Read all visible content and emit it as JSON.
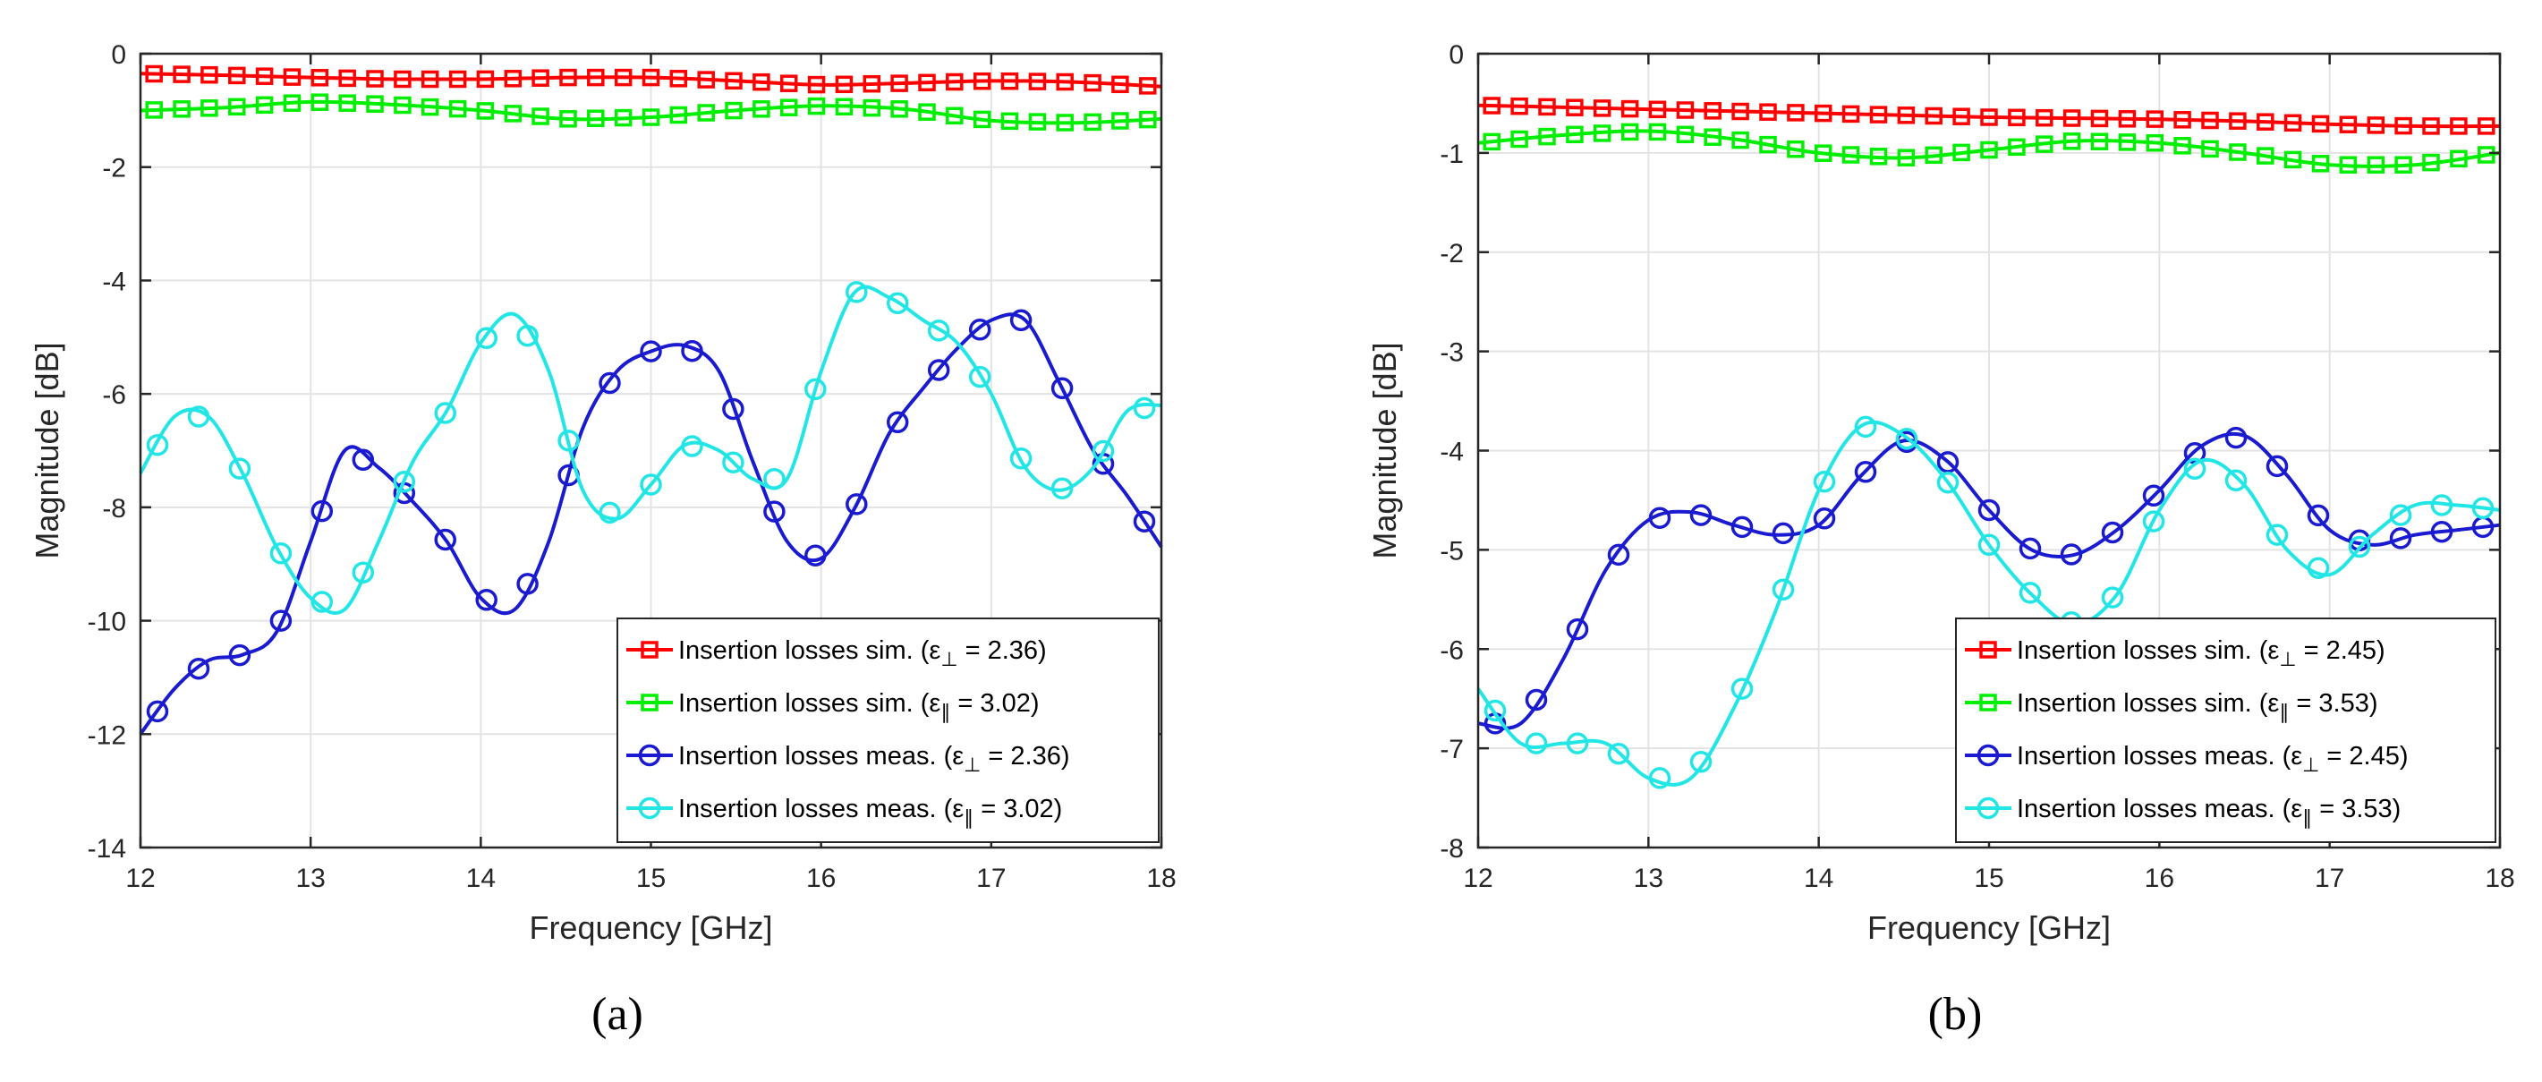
{
  "chart_data": [
    {
      "type": "line",
      "panel_label": "(a)",
      "xlabel": "Frequency [GHz]",
      "ylabel": "Magnitude [dB]",
      "xlim": [
        12,
        18
      ],
      "ylim": [
        -14,
        0
      ],
      "xticks": [
        "12",
        "13",
        "14",
        "15",
        "16",
        "17",
        "18"
      ],
      "yticks": [
        "0",
        "-2",
        "-4",
        "-6",
        "-8",
        "-10",
        "-12",
        "-14"
      ],
      "grid": true,
      "legend_position": "bottom-right",
      "series": [
        {
          "name": "Insertion losses sim.",
          "eps_symbol": "ε",
          "eps_sub": "⊥",
          "eps_value": "= 2.36",
          "color": "#ff0000",
          "marker": "square",
          "x": [
            12,
            12.5,
            13,
            13.5,
            14,
            14.5,
            15,
            15.5,
            16,
            16.5,
            17,
            17.5,
            18
          ],
          "y": [
            -0.35,
            -0.38,
            -0.42,
            -0.45,
            -0.45,
            -0.42,
            -0.42,
            -0.48,
            -0.55,
            -0.52,
            -0.48,
            -0.5,
            -0.58
          ]
        },
        {
          "name": "Insertion losses sim.",
          "eps_symbol": "ε",
          "eps_sub": "∥",
          "eps_value": "= 3.02",
          "color": "#00ee00",
          "marker": "square",
          "x": [
            12,
            12.5,
            13,
            13.5,
            14,
            14.5,
            15,
            15.5,
            16,
            16.5,
            17,
            17.5,
            18
          ],
          "y": [
            -1.0,
            -0.95,
            -0.85,
            -0.9,
            -1.0,
            -1.15,
            -1.12,
            -1.0,
            -0.92,
            -0.98,
            -1.18,
            -1.22,
            -1.15
          ]
        },
        {
          "name": "Insertion losses meas.",
          "eps_symbol": "ε",
          "eps_sub": "⊥",
          "eps_value": "= 2.36",
          "color": "#1a1ad0",
          "marker": "circle",
          "x": [
            12,
            12.2,
            12.4,
            12.6,
            12.8,
            13.0,
            13.2,
            13.4,
            13.6,
            13.8,
            14.0,
            14.2,
            14.4,
            14.6,
            14.8,
            15.0,
            15.2,
            15.4,
            15.6,
            15.8,
            16.0,
            16.2,
            16.4,
            16.6,
            16.8,
            17.0,
            17.2,
            17.4,
            17.6,
            17.8,
            18.0
          ],
          "y": [
            -12.0,
            -11.2,
            -10.7,
            -10.6,
            -10.2,
            -8.6,
            -7.0,
            -7.3,
            -7.9,
            -8.6,
            -9.6,
            -9.8,
            -8.6,
            -6.6,
            -5.6,
            -5.25,
            -5.15,
            -5.6,
            -7.2,
            -8.6,
            -8.9,
            -8.0,
            -6.7,
            -5.9,
            -5.2,
            -4.7,
            -4.7,
            -5.8,
            -7.0,
            -7.8,
            -8.7
          ]
        },
        {
          "name": "Insertion losses meas.",
          "eps_symbol": "ε",
          "eps_sub": "∥",
          "eps_value": "= 3.02",
          "color": "#22e6e6",
          "marker": "circle",
          "x": [
            12,
            12.2,
            12.4,
            12.6,
            12.8,
            13.0,
            13.2,
            13.4,
            13.6,
            13.8,
            14.0,
            14.2,
            14.4,
            14.6,
            14.8,
            15.0,
            15.2,
            15.4,
            15.6,
            15.8,
            16.0,
            16.2,
            16.4,
            16.6,
            16.8,
            17.0,
            17.2,
            17.4,
            17.6,
            17.8,
            18.0
          ],
          "y": [
            -7.4,
            -6.4,
            -6.4,
            -7.4,
            -8.7,
            -9.6,
            -9.8,
            -8.6,
            -7.2,
            -6.3,
            -5.1,
            -4.6,
            -5.6,
            -7.7,
            -8.2,
            -7.6,
            -6.9,
            -7.0,
            -7.5,
            -7.5,
            -5.6,
            -4.2,
            -4.3,
            -4.7,
            -5.1,
            -6.0,
            -7.3,
            -7.7,
            -7.3,
            -6.3,
            -6.2
          ]
        }
      ]
    },
    {
      "type": "line",
      "panel_label": "(b)",
      "xlabel": "Frequency [GHz]",
      "ylabel": "Magnitude [dB]",
      "xlim": [
        12,
        18
      ],
      "ylim": [
        -8,
        0
      ],
      "xticks": [
        "12",
        "13",
        "14",
        "15",
        "16",
        "17",
        "18"
      ],
      "yticks": [
        "0",
        "-1",
        "-2",
        "-3",
        "-4",
        "-5",
        "-6",
        "-7",
        "-8"
      ],
      "grid": true,
      "legend_position": "bottom-right",
      "series": [
        {
          "name": "Insertion losses sim.",
          "eps_symbol": "ε",
          "eps_sub": "⊥",
          "eps_value": "= 2.45",
          "color": "#ff0000",
          "marker": "square",
          "x": [
            12,
            12.5,
            13,
            13.5,
            14,
            14.5,
            15,
            15.5,
            16,
            16.5,
            17,
            17.5,
            18
          ],
          "y": [
            -0.52,
            -0.54,
            -0.56,
            -0.58,
            -0.6,
            -0.62,
            -0.64,
            -0.65,
            -0.66,
            -0.68,
            -0.71,
            -0.73,
            -0.73
          ]
        },
        {
          "name": "Insertion losses sim.",
          "eps_symbol": "ε",
          "eps_sub": "∥",
          "eps_value": "= 3.53",
          "color": "#00ee00",
          "marker": "square",
          "x": [
            12,
            12.5,
            13,
            13.5,
            14,
            14.5,
            15,
            15.5,
            16,
            16.5,
            17,
            17.5,
            18
          ],
          "y": [
            -0.9,
            -0.82,
            -0.78,
            -0.86,
            -1.0,
            -1.05,
            -0.97,
            -0.88,
            -0.9,
            -1.0,
            -1.12,
            -1.12,
            -1.0
          ]
        },
        {
          "name": "Insertion losses meas.",
          "eps_symbol": "ε",
          "eps_sub": "⊥",
          "eps_value": "= 2.45",
          "color": "#1a1ad0",
          "marker": "circle",
          "x": [
            12,
            12.25,
            12.5,
            12.75,
            13,
            13.25,
            13.5,
            13.75,
            14,
            14.25,
            14.5,
            14.75,
            15,
            15.25,
            15.5,
            15.75,
            16,
            16.25,
            16.5,
            16.75,
            17,
            17.25,
            17.5,
            17.75,
            18
          ],
          "y": [
            -6.75,
            -6.75,
            -6.1,
            -5.2,
            -4.7,
            -4.62,
            -4.75,
            -4.85,
            -4.75,
            -4.25,
            -3.9,
            -4.1,
            -4.6,
            -5.0,
            -5.05,
            -4.8,
            -4.4,
            -3.95,
            -3.85,
            -4.25,
            -4.8,
            -4.95,
            -4.85,
            -4.8,
            -4.75
          ]
        },
        {
          "name": "Insertion losses meas.",
          "eps_symbol": "ε",
          "eps_sub": "∥",
          "eps_value": "= 3.53",
          "color": "#22e6e6",
          "marker": "circle",
          "x": [
            12,
            12.25,
            12.5,
            12.75,
            13,
            13.25,
            13.5,
            13.75,
            14,
            14.25,
            14.5,
            14.75,
            15,
            15.25,
            15.5,
            15.75,
            16,
            16.25,
            16.5,
            16.75,
            17,
            17.25,
            17.5,
            17.75,
            18
          ],
          "y": [
            -6.4,
            -6.95,
            -6.95,
            -6.95,
            -7.3,
            -7.3,
            -6.6,
            -5.6,
            -4.4,
            -3.75,
            -3.85,
            -4.3,
            -4.95,
            -5.45,
            -5.75,
            -5.45,
            -4.6,
            -4.1,
            -4.35,
            -5.0,
            -5.25,
            -4.85,
            -4.55,
            -4.55,
            -4.6
          ]
        }
      ]
    }
  ]
}
